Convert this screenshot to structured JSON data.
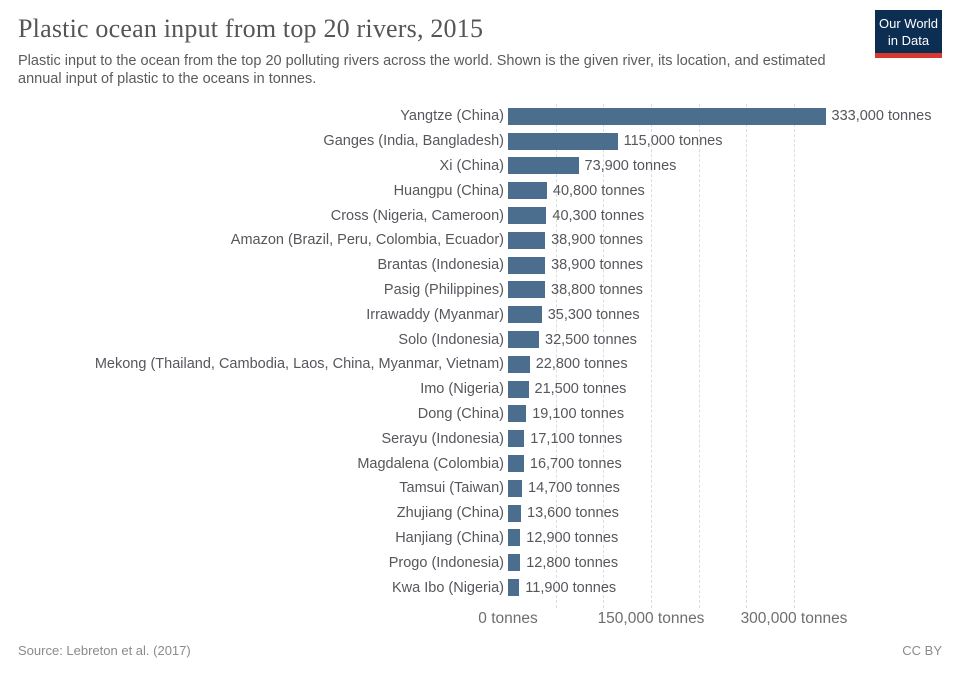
{
  "header": {
    "title": "Plastic ocean input from top 20 rivers, 2015",
    "subtitle": "Plastic input to the ocean from the top 20 polluting rivers across the world. Shown is the given river, its location, and estimated annual input of plastic to the oceans in tonnes.",
    "logo": {
      "line1": "Our World",
      "line2": "in Data",
      "bg_color": "#0c2e52",
      "accent_color": "#d6392f"
    }
  },
  "chart_data": {
    "type": "bar",
    "orientation": "horizontal",
    "title": "Plastic ocean input from top 20 rivers, 2015",
    "unit": "tonnes",
    "bar_color": "#4c6e8e",
    "grid": "dashed",
    "legend_position": "none",
    "rows": [
      {
        "label": "Yangtze (China)",
        "value": 333000,
        "value_label": "333,000 tonnes"
      },
      {
        "label": "Ganges (India, Bangladesh)",
        "value": 115000,
        "value_label": "115,000 tonnes"
      },
      {
        "label": "Xi (China)",
        "value": 73900,
        "value_label": "73,900 tonnes"
      },
      {
        "label": "Huangpu (China)",
        "value": 40800,
        "value_label": "40,800 tonnes"
      },
      {
        "label": "Cross (Nigeria, Cameroon)",
        "value": 40300,
        "value_label": "40,300 tonnes"
      },
      {
        "label": "Amazon (Brazil, Peru, Colombia, Ecuador)",
        "value": 38900,
        "value_label": "38,900 tonnes"
      },
      {
        "label": "Brantas (Indonesia)",
        "value": 38900,
        "value_label": "38,900 tonnes"
      },
      {
        "label": "Pasig (Philippines)",
        "value": 38800,
        "value_label": "38,800 tonnes"
      },
      {
        "label": "Irrawaddy (Myanmar)",
        "value": 35300,
        "value_label": "35,300 tonnes"
      },
      {
        "label": "Solo (Indonesia)",
        "value": 32500,
        "value_label": "32,500 tonnes"
      },
      {
        "label": "Mekong (Thailand, Cambodia, Laos, China, Myanmar, Vietnam)",
        "value": 22800,
        "value_label": "22,800 tonnes"
      },
      {
        "label": "Imo (Nigeria)",
        "value": 21500,
        "value_label": "21,500 tonnes"
      },
      {
        "label": "Dong (China)",
        "value": 19100,
        "value_label": "19,100 tonnes"
      },
      {
        "label": "Serayu (Indonesia)",
        "value": 17100,
        "value_label": "17,100 tonnes"
      },
      {
        "label": "Magdalena (Colombia)",
        "value": 16700,
        "value_label": "16,700 tonnes"
      },
      {
        "label": "Tamsui (Taiwan)",
        "value": 14700,
        "value_label": "14,700 tonnes"
      },
      {
        "label": "Zhujiang (China)",
        "value": 13600,
        "value_label": "13,600 tonnes"
      },
      {
        "label": "Hanjiang (China)",
        "value": 12900,
        "value_label": "12,900 tonnes"
      },
      {
        "label": "Progo (Indonesia)",
        "value": 12800,
        "value_label": "12,800 tonnes"
      },
      {
        "label": "Kwa Ibo (Nigeria)",
        "value": 11900,
        "value_label": "11,900 tonnes"
      }
    ],
    "axis": {
      "min": 0,
      "max": 300000,
      "ticks": [
        {
          "value": 0,
          "label": "0 tonnes"
        },
        {
          "value": 150000,
          "label": "150,000 tonnes"
        },
        {
          "value": 300000,
          "label": "300,000 tonnes"
        }
      ],
      "gridline_values": [
        50000,
        100000,
        150000,
        200000,
        250000,
        300000
      ]
    }
  },
  "footer": {
    "source": "Source: Lebreton et al. (2017)",
    "license": "CC BY"
  }
}
